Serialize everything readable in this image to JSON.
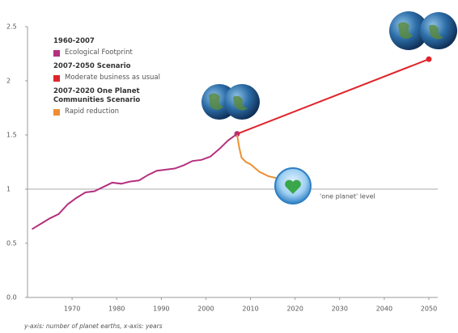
{
  "chart_data": {
    "type": "line",
    "caption": "y-axis: number of planet earths, x-axis: years",
    "reference_line": 1,
    "reference_label": "'one planet' level",
    "xlim": [
      1960,
      2052
    ],
    "xticks": [
      1970,
      1980,
      1990,
      2000,
      2010,
      2020,
      2030,
      2040,
      2050
    ],
    "ylim": [
      0,
      2.5
    ],
    "yticks": [
      {
        "value": 0,
        "label": "0.0"
      },
      0.5,
      1,
      1.5,
      2,
      2.5
    ],
    "series": [
      {
        "name": "Ecological Footprint",
        "legend_group": "1960-2007",
        "color": "#b5307f",
        "end_marker": true,
        "x": [
          1961,
          1963,
          1965,
          1967,
          1969,
          1971,
          1973,
          1975,
          1977,
          1979,
          1981,
          1983,
          1985,
          1987,
          1989,
          1991,
          1993,
          1995,
          1997,
          1999,
          2001,
          2003,
          2005,
          2007
        ],
        "values": [
          0.63,
          0.68,
          0.73,
          0.77,
          0.86,
          0.92,
          0.97,
          0.98,
          1.02,
          1.06,
          1.05,
          1.07,
          1.08,
          1.13,
          1.17,
          1.18,
          1.19,
          1.22,
          1.26,
          1.27,
          1.3,
          1.37,
          1.45,
          1.51
        ]
      },
      {
        "name": "Moderate business as usual",
        "legend_group": "2007-2050 Scenario",
        "color": "#e0242b",
        "end_marker": true,
        "x": [
          2007,
          2050
        ],
        "values": [
          1.51,
          2.2
        ]
      },
      {
        "name": "Rapid reduction",
        "legend_group": "2007-2020 One Planet Communities Scenario",
        "color": "#ef8f33",
        "end_marker": false,
        "x": [
          2007,
          2007.5,
          2008,
          2009,
          2010,
          2012,
          2014,
          2016,
          2018,
          2019.5
        ],
        "values": [
          1.5,
          1.38,
          1.29,
          1.25,
          1.23,
          1.16,
          1.12,
          1.1,
          1.05,
          1.0
        ]
      }
    ]
  }
}
